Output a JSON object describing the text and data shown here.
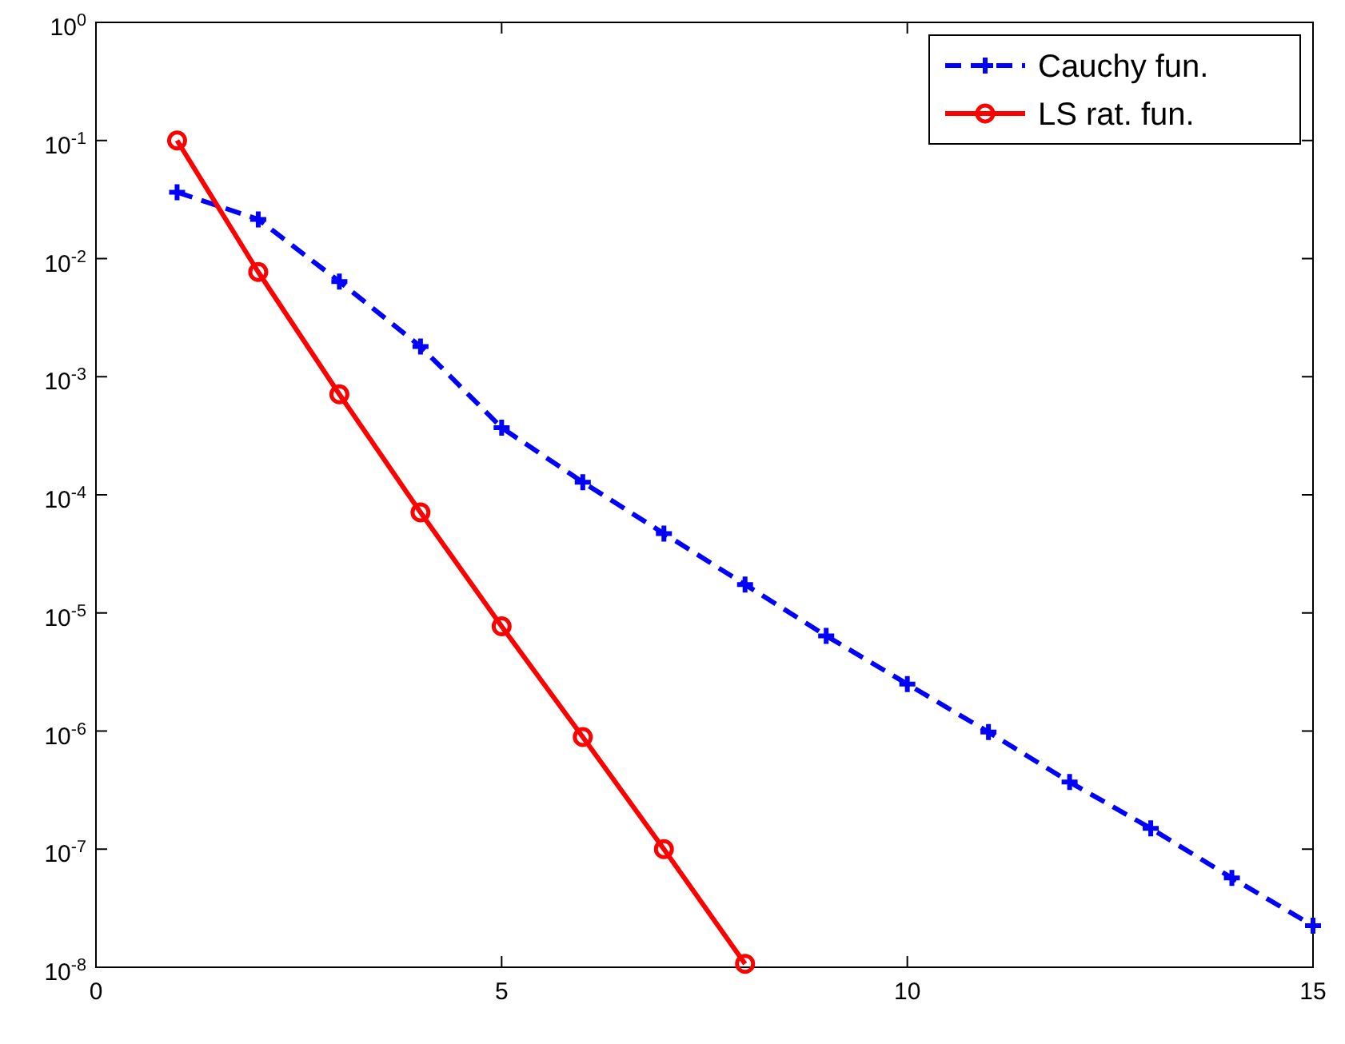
{
  "chart_data": {
    "type": "line",
    "log": "y",
    "x": [
      1,
      2,
      3,
      4,
      5,
      6,
      7,
      8,
      9,
      10,
      11,
      12,
      13,
      14,
      15
    ],
    "series": [
      {
        "name": "Cauchy fun.",
        "color": "#0000ff",
        "marker": "cross",
        "line_style": "dashed",
        "values": [
          0.0365,
          0.0215,
          0.0064,
          0.0018,
          0.00037,
          0.000128,
          4.7e-05,
          1.74e-05,
          6.4e-06,
          2.5e-06,
          9.8e-07,
          3.7e-07,
          1.5e-07,
          5.7e-08,
          2.25e-08
        ]
      },
      {
        "name": "LS rat. fun.",
        "color": "#ff0000",
        "marker": "circle",
        "line_style": "solid",
        "x": [
          1,
          2,
          3,
          4,
          5,
          6,
          7,
          8
        ],
        "values": [
          0.1,
          0.0077,
          0.00071,
          7.1e-05,
          7.7e-06,
          8.9e-07,
          1e-07,
          1.07e-08
        ]
      }
    ],
    "xlim": [
      0,
      15
    ],
    "xticks": [
      0,
      5,
      10,
      15
    ],
    "ylim": [
      1e-08,
      1
    ],
    "yticks": [
      {
        "value": 1e-08,
        "label": "10$^{-8}$"
      },
      {
        "value": 1e-07,
        "label": "10$^{-7}$"
      },
      {
        "value": 1e-06,
        "label": "10$^{-6}$"
      },
      {
        "value": 1e-05,
        "label": "10$^{-5}$"
      },
      {
        "value": 0.0001,
        "label": "10$^{-4}$"
      },
      {
        "value": 0.001,
        "label": "10$^{-3}$"
      },
      {
        "value": 0.01,
        "label": "10$^{-2}$"
      },
      {
        "value": 0.1,
        "label": "10$^{-1}$"
      },
      {
        "value": 1,
        "label": "10$^{0}$"
      }
    ],
    "grid": false,
    "legend": "top right"
  }
}
